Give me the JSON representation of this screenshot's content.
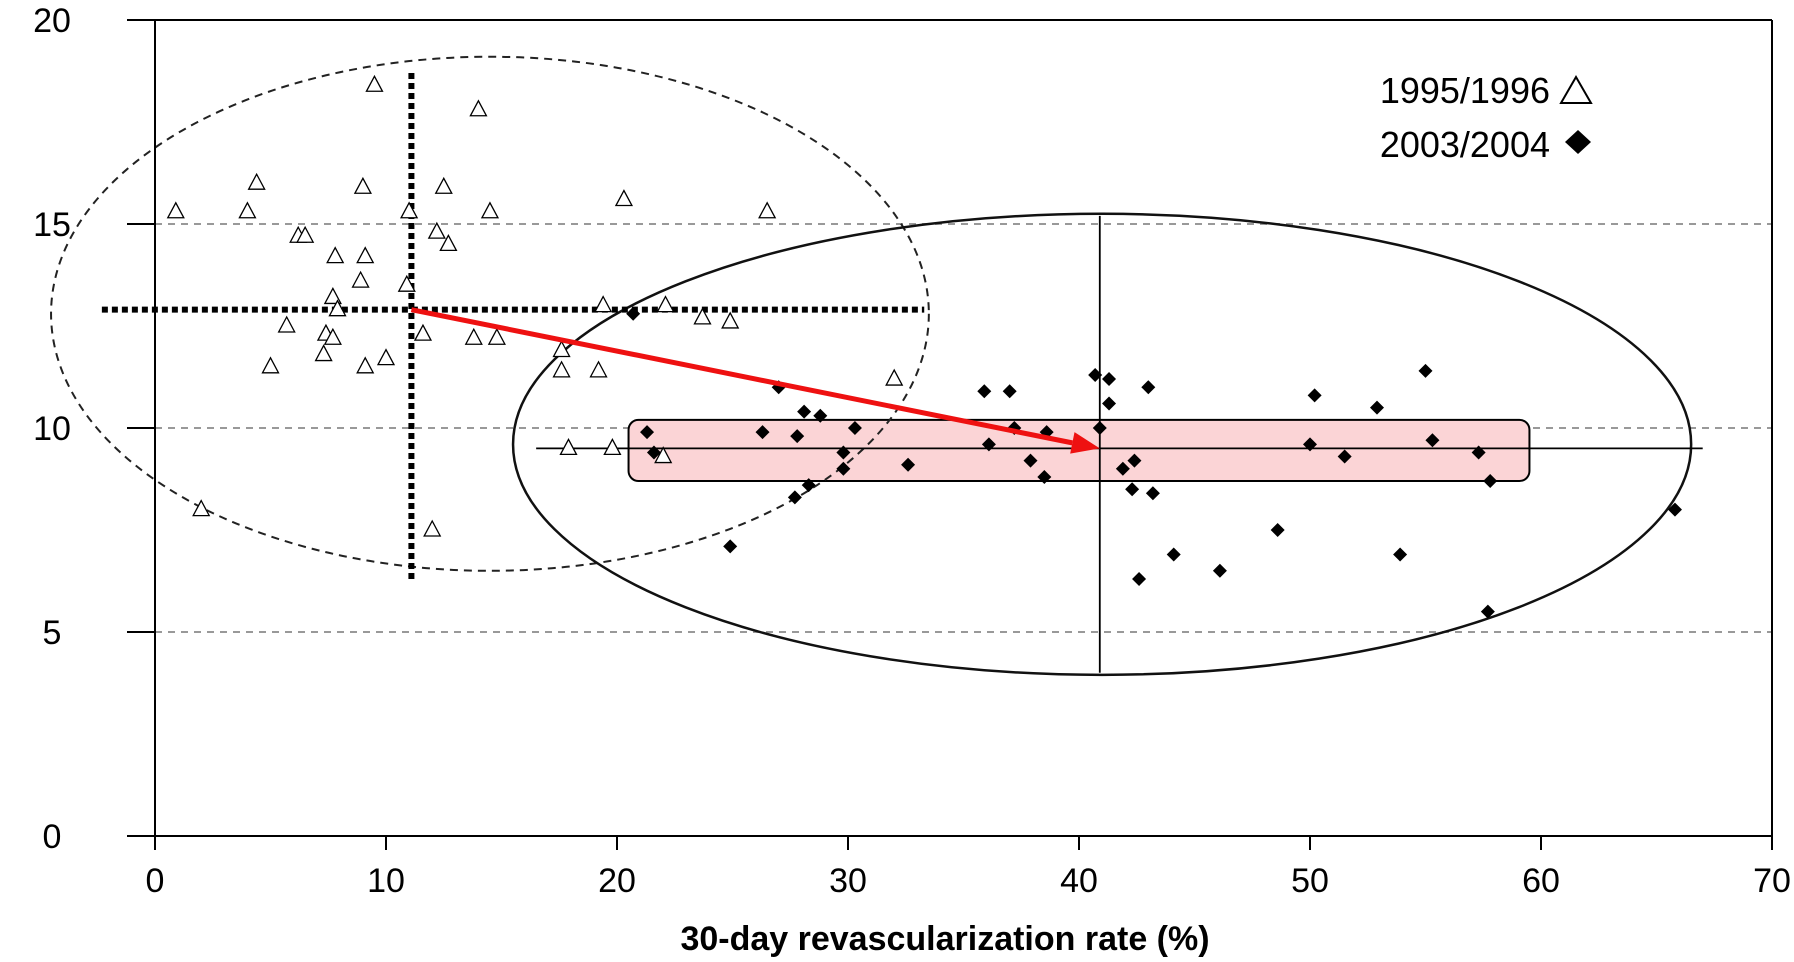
{
  "chart_data": {
    "type": "scatter",
    "title": "",
    "xlabel": "30-day revascularization rate (%)",
    "ylabel": "",
    "xlim": [
      0,
      70
    ],
    "ylim": [
      0,
      20
    ],
    "x_ticks": [
      "0",
      "10",
      "20",
      "30",
      "40",
      "50",
      "60",
      "70"
    ],
    "y_ticks": [
      "0",
      "5",
      "10",
      "15",
      "20"
    ],
    "grid": "horizontal dashed at y = 5, 10, 15",
    "legend_position": "top-right",
    "series": [
      {
        "name": "1995/1996",
        "marker": "open-triangle",
        "points": [
          [
            0.9,
            15.3
          ],
          [
            4.4,
            16.0
          ],
          [
            4.0,
            15.3
          ],
          [
            9.5,
            18.4
          ],
          [
            14.0,
            17.8
          ],
          [
            9.0,
            15.9
          ],
          [
            12.5,
            15.9
          ],
          [
            11.0,
            15.3
          ],
          [
            14.5,
            15.3
          ],
          [
            6.2,
            14.7
          ],
          [
            6.5,
            14.7
          ],
          [
            12.2,
            14.8
          ],
          [
            12.7,
            14.5
          ],
          [
            7.8,
            14.2
          ],
          [
            9.1,
            14.2
          ],
          [
            8.9,
            13.6
          ],
          [
            10.9,
            13.5
          ],
          [
            7.7,
            13.2
          ],
          [
            7.9,
            12.9
          ],
          [
            5.7,
            12.5
          ],
          [
            7.4,
            12.3
          ],
          [
            7.7,
            12.2
          ],
          [
            11.6,
            12.3
          ],
          [
            13.8,
            12.2
          ],
          [
            14.8,
            12.2
          ],
          [
            7.3,
            11.8
          ],
          [
            10.0,
            11.7
          ],
          [
            9.1,
            11.5
          ],
          [
            5.0,
            11.5
          ],
          [
            17.6,
            11.9
          ],
          [
            17.6,
            11.4
          ],
          [
            19.2,
            11.4
          ],
          [
            19.4,
            13.0
          ],
          [
            22.1,
            13.0
          ],
          [
            23.7,
            12.7
          ],
          [
            24.9,
            12.6
          ],
          [
            20.3,
            15.6
          ],
          [
            26.5,
            15.3
          ],
          [
            32.0,
            11.2
          ],
          [
            17.9,
            9.5
          ],
          [
            19.8,
            9.5
          ],
          [
            22.0,
            9.3
          ],
          [
            2.0,
            8.0
          ],
          [
            12.0,
            7.5
          ]
        ]
      },
      {
        "name": "2003/2004",
        "marker": "filled-diamond",
        "points": [
          [
            20.7,
            12.8
          ],
          [
            27.0,
            11.0
          ],
          [
            35.9,
            10.9
          ],
          [
            37.0,
            10.9
          ],
          [
            40.7,
            11.3
          ],
          [
            41.3,
            11.2
          ],
          [
            43.0,
            11.0
          ],
          [
            41.3,
            10.6
          ],
          [
            55.0,
            11.4
          ],
          [
            50.2,
            10.8
          ],
          [
            52.9,
            10.5
          ],
          [
            28.1,
            10.4
          ],
          [
            28.8,
            10.3
          ],
          [
            30.3,
            10.0
          ],
          [
            37.2,
            10.0
          ],
          [
            40.9,
            10.0
          ],
          [
            21.3,
            9.9
          ],
          [
            26.3,
            9.9
          ],
          [
            27.8,
            9.8
          ],
          [
            38.6,
            9.9
          ],
          [
            55.3,
            9.7
          ],
          [
            36.1,
            9.6
          ],
          [
            50.0,
            9.6
          ],
          [
            57.3,
            9.4
          ],
          [
            21.6,
            9.4
          ],
          [
            29.8,
            9.4
          ],
          [
            32.6,
            9.1
          ],
          [
            37.9,
            9.2
          ],
          [
            41.9,
            9.0
          ],
          [
            42.4,
            9.2
          ],
          [
            51.5,
            9.3
          ],
          [
            29.8,
            9.0
          ],
          [
            38.5,
            8.8
          ],
          [
            57.8,
            8.7
          ],
          [
            28.3,
            8.6
          ],
          [
            42.3,
            8.5
          ],
          [
            43.2,
            8.4
          ],
          [
            27.7,
            8.3
          ],
          [
            65.8,
            8.0
          ],
          [
            48.6,
            7.5
          ],
          [
            24.9,
            7.1
          ],
          [
            44.1,
            6.9
          ],
          [
            53.9,
            6.9
          ],
          [
            46.1,
            6.5
          ],
          [
            42.6,
            6.3
          ],
          [
            57.7,
            5.5
          ]
        ]
      }
    ],
    "annotations": {
      "centroid_1995": [
        11.1,
        12.9
      ],
      "centroid_2003": [
        40.9,
        9.5
      ],
      "arrow_color": "#ee1111",
      "highlight_band": {
        "x": [
          20.5,
          59.5
        ],
        "y": [
          8.7,
          10.2
        ],
        "fill": "#fbd4d6"
      },
      "ellipse_1995": {
        "cx": 14.5,
        "cy": 12.8,
        "rx": 19.0,
        "ry": 6.3,
        "style": "dashed"
      },
      "ellipse_2003": {
        "cx": 41.0,
        "cy": 9.6,
        "rx": 25.5,
        "ry": 5.65,
        "style": "solid"
      },
      "crosshair_1995": {
        "x": 11.1,
        "y": 12.9,
        "xrange": [
          -2.3,
          33.3
        ],
        "yrange": [
          6.3,
          18.8
        ]
      },
      "crosshair_2003": {
        "x": 40.9,
        "y": 9.5,
        "xrange": [
          16.5,
          67.0
        ],
        "yrange": [
          4.0,
          15.2
        ]
      }
    }
  }
}
